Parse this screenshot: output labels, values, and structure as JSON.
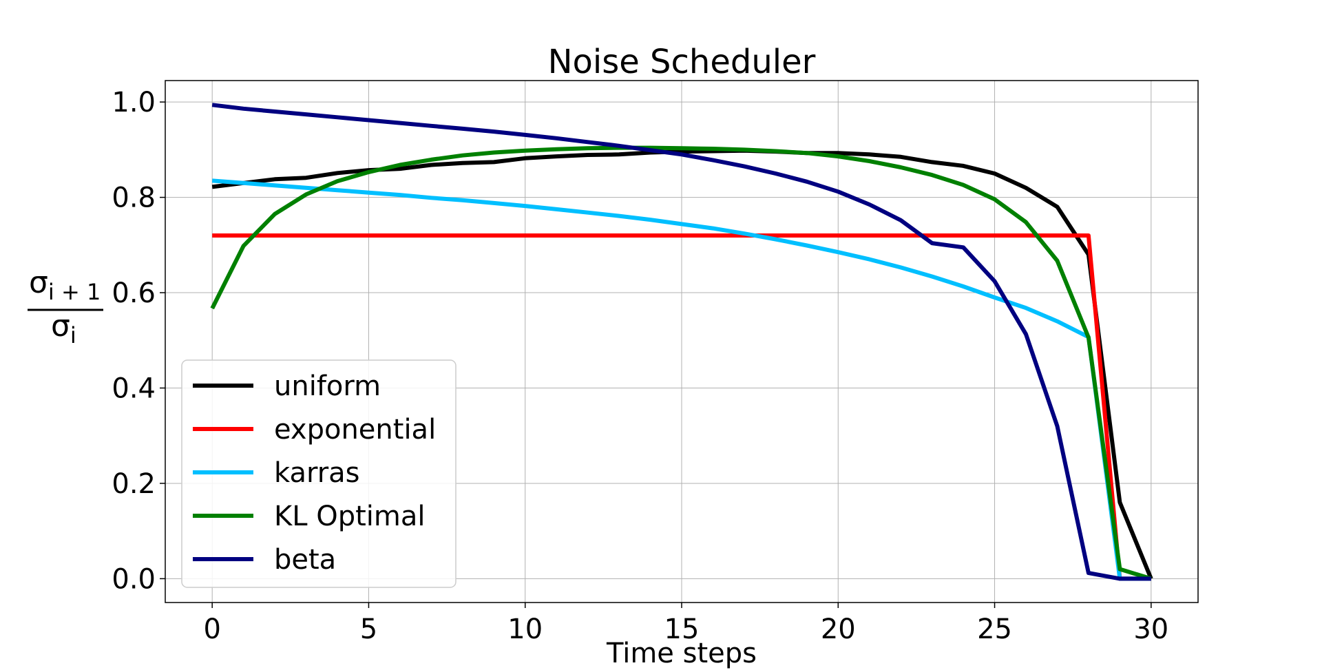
{
  "chart_data": {
    "type": "line",
    "title": "Noise Scheduler",
    "xlabel": "Time steps",
    "ylabel": {
      "num_base": "σ",
      "num_sub": "i + 1",
      "den_base": "σ",
      "den_sub": "i"
    },
    "xlim": [
      -1.5,
      31.5
    ],
    "ylim": [
      -0.05,
      1.045
    ],
    "xticks": [
      0,
      5,
      10,
      15,
      20,
      25,
      30
    ],
    "xtick_labels": [
      "0",
      "5",
      "10",
      "15",
      "20",
      "25",
      "30"
    ],
    "yticks": [
      0.0,
      0.2,
      0.4,
      0.6,
      0.8,
      1.0
    ],
    "ytick_labels": [
      "0.0",
      "0.2",
      "0.4",
      "0.6",
      "0.8",
      "1.0"
    ],
    "grid": true,
    "legend_position": "lower-left",
    "series": [
      {
        "name": "uniform",
        "color": "#000000",
        "x": [
          0,
          1,
          2,
          3,
          4,
          5,
          6,
          7,
          8,
          9,
          10,
          11,
          12,
          13,
          14,
          15,
          16,
          17,
          18,
          19,
          20,
          21,
          22,
          23,
          24,
          25,
          26,
          27,
          28,
          29,
          30
        ],
        "y": [
          0.822,
          0.83,
          0.838,
          0.841,
          0.851,
          0.857,
          0.86,
          0.868,
          0.872,
          0.874,
          0.882,
          0.886,
          0.889,
          0.89,
          0.894,
          0.896,
          0.897,
          0.898,
          0.896,
          0.893,
          0.893,
          0.89,
          0.885,
          0.874,
          0.866,
          0.85,
          0.82,
          0.78,
          0.68,
          0.16,
          0.0
        ]
      },
      {
        "name": "exponential",
        "color": "#ff0000",
        "x": [
          0,
          28,
          29,
          30
        ],
        "y": [
          0.72,
          0.72,
          0.0,
          0.0
        ]
      },
      {
        "name": "karras",
        "color": "#00bfff",
        "x": [
          0,
          1,
          2,
          3,
          4,
          5,
          6,
          7,
          8,
          9,
          10,
          11,
          12,
          13,
          14,
          15,
          16,
          17,
          18,
          19,
          20,
          21,
          22,
          23,
          24,
          25,
          26,
          27,
          28,
          29,
          30
        ],
        "y": [
          0.835,
          0.83,
          0.825,
          0.82,
          0.815,
          0.81,
          0.805,
          0.799,
          0.794,
          0.788,
          0.782,
          0.775,
          0.768,
          0.761,
          0.753,
          0.744,
          0.735,
          0.724,
          0.712,
          0.699,
          0.685,
          0.67,
          0.653,
          0.634,
          0.613,
          0.59,
          0.568,
          0.54,
          0.507,
          0.0,
          0.0
        ]
      },
      {
        "name": "KL Optimal",
        "color": "#008000",
        "x": [
          0,
          1,
          2,
          3,
          4,
          5,
          6,
          7,
          8,
          9,
          10,
          11,
          12,
          13,
          14,
          15,
          16,
          17,
          18,
          19,
          20,
          21,
          22,
          23,
          24,
          25,
          26,
          27,
          28,
          29,
          30
        ],
        "y": [
          0.567,
          0.698,
          0.765,
          0.806,
          0.834,
          0.853,
          0.868,
          0.879,
          0.888,
          0.894,
          0.898,
          0.901,
          0.903,
          0.904,
          0.904,
          0.903,
          0.902,
          0.9,
          0.897,
          0.893,
          0.886,
          0.876,
          0.863,
          0.847,
          0.826,
          0.796,
          0.748,
          0.667,
          0.506,
          0.02,
          0.0
        ]
      },
      {
        "name": "beta",
        "color": "#000080",
        "x": [
          0,
          1,
          2,
          3,
          4,
          5,
          6,
          7,
          8,
          9,
          10,
          11,
          12,
          13,
          14,
          15,
          16,
          17,
          18,
          19,
          20,
          21,
          22,
          23,
          24,
          25,
          26,
          27,
          28,
          29,
          30
        ],
        "y": [
          0.994,
          0.986,
          0.98,
          0.974,
          0.968,
          0.962,
          0.956,
          0.95,
          0.944,
          0.938,
          0.931,
          0.924,
          0.916,
          0.908,
          0.899,
          0.89,
          0.878,
          0.865,
          0.85,
          0.833,
          0.812,
          0.785,
          0.752,
          0.704,
          0.695,
          0.624,
          0.513,
          0.32,
          0.012,
          0.0,
          0.0
        ]
      }
    ]
  }
}
